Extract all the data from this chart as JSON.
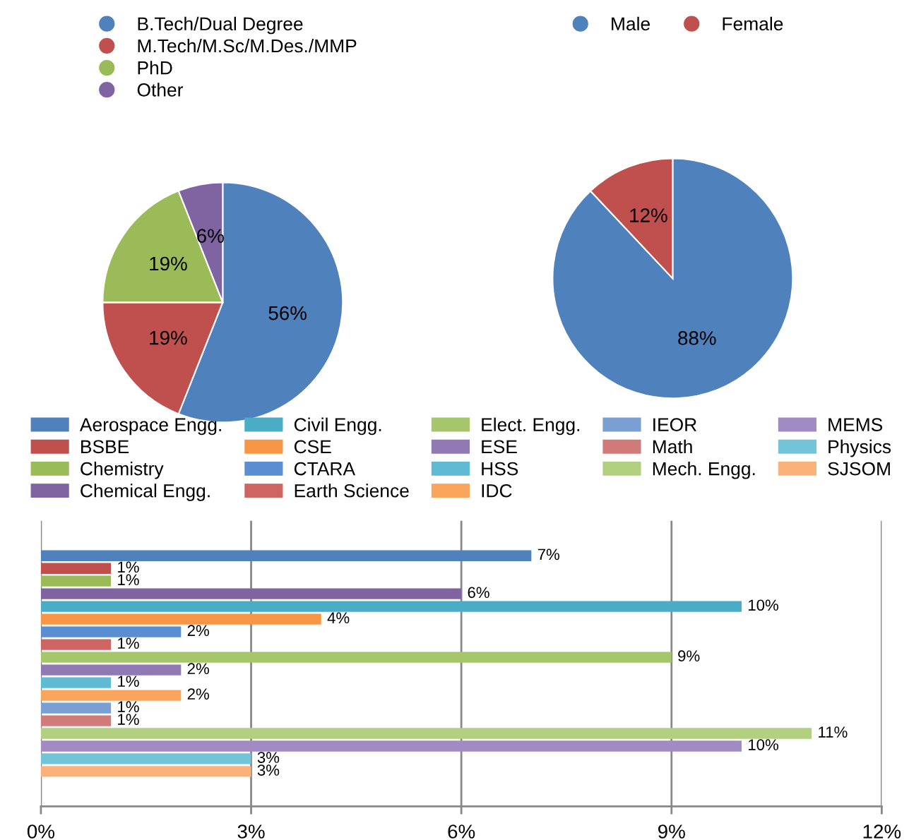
{
  "chart_data": [
    {
      "type": "pie",
      "categories": [
        "B.Tech/Dual Degree",
        "M.Tech/M.Sc/M.Des./MMP",
        "PhD",
        "Other"
      ],
      "values": [
        56,
        19,
        19,
        6
      ],
      "colors": [
        "#4f81bd",
        "#c0504d",
        "#9bbb59",
        "#8064a2"
      ],
      "value_labels": [
        "56%",
        "19%",
        "19%",
        "6%"
      ],
      "legend": "top"
    },
    {
      "type": "pie",
      "categories": [
        "Male",
        "Female"
      ],
      "values": [
        88,
        12
      ],
      "colors": [
        "#4f81bd",
        "#c0504d"
      ],
      "value_labels": [
        "88%",
        "12%"
      ],
      "legend": "top"
    },
    {
      "type": "bar",
      "orientation": "horizontal",
      "categories": [
        null
      ],
      "xlim": [
        0,
        12
      ],
      "xticks": [
        {
          "value": 0,
          "label": "0%"
        },
        {
          "value": 3,
          "label": "3%"
        },
        {
          "value": 6,
          "label": "6%"
        },
        {
          "value": 9,
          "label": "9%"
        },
        {
          "value": 12,
          "label": "12%"
        }
      ],
      "grid": "x",
      "legend": "top",
      "series": [
        {
          "name": "Aerospace Engg.",
          "color": "#4f81bd",
          "values": [
            7
          ],
          "value_labels": [
            "7%"
          ]
        },
        {
          "name": "BSBE",
          "color": "#c0504d",
          "values": [
            1
          ],
          "value_labels": [
            "1%"
          ]
        },
        {
          "name": "Chemistry",
          "color": "#9bbb59",
          "values": [
            1
          ],
          "value_labels": [
            "1%"
          ]
        },
        {
          "name": "Chemical Engg.",
          "color": "#8064a2",
          "values": [
            6
          ],
          "value_labels": [
            "6%"
          ]
        },
        {
          "name": "Civil Engg.",
          "color": "#4bacc6",
          "values": [
            10
          ],
          "value_labels": [
            "10%"
          ]
        },
        {
          "name": "CSE",
          "color": "#f79646",
          "values": [
            4
          ],
          "value_labels": [
            "4%"
          ]
        },
        {
          "name": "CTARA",
          "color": "#5b8ed0",
          "values": [
            2
          ],
          "value_labels": [
            "2%"
          ]
        },
        {
          "name": "Earth Science",
          "color": "#cd6562",
          "values": [
            1
          ],
          "value_labels": [
            "1%"
          ]
        },
        {
          "name": "Elect. Engg.",
          "color": "#a5c66a",
          "values": [
            9
          ],
          "value_labels": [
            "9%"
          ]
        },
        {
          "name": "ESE",
          "color": "#9179b4",
          "values": [
            2
          ],
          "value_labels": [
            "2%"
          ]
        },
        {
          "name": "HSS",
          "color": "#5fbad4",
          "values": [
            1
          ],
          "value_labels": [
            "1%"
          ]
        },
        {
          "name": "IDC",
          "color": "#f9a55b",
          "values": [
            2
          ],
          "value_labels": [
            "2%"
          ]
        },
        {
          "name": "IEOR",
          "color": "#7a9fd3",
          "values": [
            1
          ],
          "value_labels": [
            "1%"
          ]
        },
        {
          "name": "Math",
          "color": "#d07b79",
          "values": [
            1
          ],
          "value_labels": [
            "1%"
          ]
        },
        {
          "name": "Mech. Engg.",
          "color": "#b3cf80",
          "values": [
            11
          ],
          "value_labels": [
            "11%"
          ]
        },
        {
          "name": "MEMS",
          "color": "#a08cc2",
          "values": [
            10
          ],
          "value_labels": [
            "10%"
          ]
        },
        {
          "name": "Physics",
          "color": "#74c4d9",
          "values": [
            3
          ],
          "value_labels": [
            "3%"
          ]
        },
        {
          "name": "SJSOM",
          "color": "#fbb27a",
          "values": [
            3
          ],
          "value_labels": [
            "3%"
          ]
        }
      ]
    }
  ]
}
